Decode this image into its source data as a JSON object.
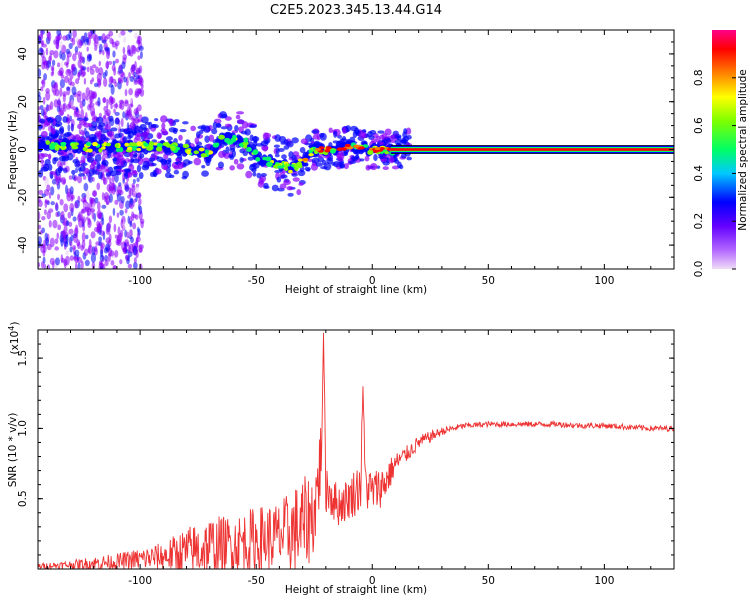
{
  "title": "C2E5.2023.345.13.44.G14",
  "chart_data": [
    {
      "type": "heatmap",
      "xlabel": "Height of straight line (km)",
      "ylabel": "Frequency (Hz)",
      "xlim": [
        -144,
        130
      ],
      "ylim": [
        -50,
        50
      ],
      "x_ticks": [
        "-100",
        "-50",
        "0",
        "50",
        "100"
      ],
      "x_tick_values": [
        -100,
        -50,
        0,
        50,
        100
      ],
      "y_ticks": [
        "-40",
        "-20",
        "0",
        "20",
        "40"
      ],
      "y_tick_values": [
        -40,
        -20,
        0,
        20,
        40
      ],
      "ridge": [
        {
          "x": -140,
          "y": 1.5
        },
        {
          "x": -120,
          "y": 1.0
        },
        {
          "x": -100,
          "y": 1.0
        },
        {
          "x": -90,
          "y": 1.0
        },
        {
          "x": -80,
          "y": 0.0
        },
        {
          "x": -70,
          "y": -2.0
        },
        {
          "x": -65,
          "y": 5.0
        },
        {
          "x": -55,
          "y": 3.0
        },
        {
          "x": -48,
          "y": -4.0
        },
        {
          "x": -40,
          "y": -6.0
        },
        {
          "x": -35,
          "y": -8.0
        },
        {
          "x": -30,
          "y": -5.0
        },
        {
          "x": -25,
          "y": 0.0
        },
        {
          "x": -20,
          "y": 0.0
        },
        {
          "x": -10,
          "y": 1.0
        },
        {
          "x": 0,
          "y": 0.0
        },
        {
          "x": 10,
          "y": 0.0
        },
        {
          "x": 130,
          "y": 0.0
        }
      ],
      "colorbar": {
        "label": "Normalized spectral amplitude",
        "range": [
          0,
          1
        ],
        "ticks": [
          "0.0",
          "0.2",
          "0.4",
          "0.6",
          "0.8"
        ],
        "tick_values": [
          0.0,
          0.2,
          0.4,
          0.6,
          0.8
        ],
        "colors": [
          "#e8ccf4",
          "#8a00ff",
          "#0000ff",
          "#00c8ff",
          "#00ff66",
          "#7fff00",
          "#ffff00",
          "#ff8000",
          "#ff0000",
          "#ff0088"
        ]
      }
    },
    {
      "type": "line",
      "xlabel": "Height of straight line (km)",
      "ylabel": "SNR (10 * v/v)",
      "y_multiplier": "(x10",
      "y_multiplier_exp": "4",
      "y_multiplier_close": ")",
      "xlim": [
        -144,
        130
      ],
      "ylim": [
        0,
        1.7
      ],
      "x_ticks": [
        "-100",
        "-50",
        "0",
        "50",
        "100"
      ],
      "x_tick_values": [
        -100,
        -50,
        0,
        50,
        100
      ],
      "y_ticks": [
        "0.5",
        "1.0",
        "1.5"
      ],
      "y_tick_values": [
        0.5,
        1.0,
        1.5
      ],
      "line_color": "#ee3333",
      "series": [
        {
          "x": [
            -144,
            -130,
            -120,
            -110,
            -100,
            -90,
            -80,
            -70,
            -60,
            -50,
            -40,
            -30,
            -25,
            -22,
            -21,
            -20,
            -15,
            -10,
            -5,
            -4,
            -3,
            0,
            5,
            10,
            15,
            20,
            30,
            40,
            50,
            60,
            70,
            80,
            90,
            100,
            110,
            120,
            130
          ],
          "values": [
            0.02,
            0.03,
            0.04,
            0.05,
            0.07,
            0.09,
            0.12,
            0.15,
            0.18,
            0.2,
            0.23,
            0.3,
            0.4,
            0.8,
            1.68,
            0.6,
            0.45,
            0.5,
            0.6,
            1.3,
            0.6,
            0.55,
            0.6,
            0.75,
            0.82,
            0.9,
            0.98,
            1.02,
            1.03,
            1.03,
            1.03,
            1.03,
            1.02,
            1.02,
            1.01,
            1.0,
            1.0
          ],
          "noise_max": [
            0.02,
            0.03,
            0.05,
            0.06,
            0.08,
            0.1,
            0.18,
            0.23,
            0.2,
            0.25,
            0.25,
            0.35,
            0.3,
            0.3,
            0.0,
            0.2,
            0.15,
            0.15,
            0.2,
            0.0,
            0.2,
            0.15,
            0.15,
            0.08,
            0.06,
            0.05,
            0.03,
            0.02,
            0.02,
            0.02,
            0.02,
            0.02,
            0.02,
            0.02,
            0.02,
            0.02,
            0.02
          ]
        }
      ]
    }
  ]
}
